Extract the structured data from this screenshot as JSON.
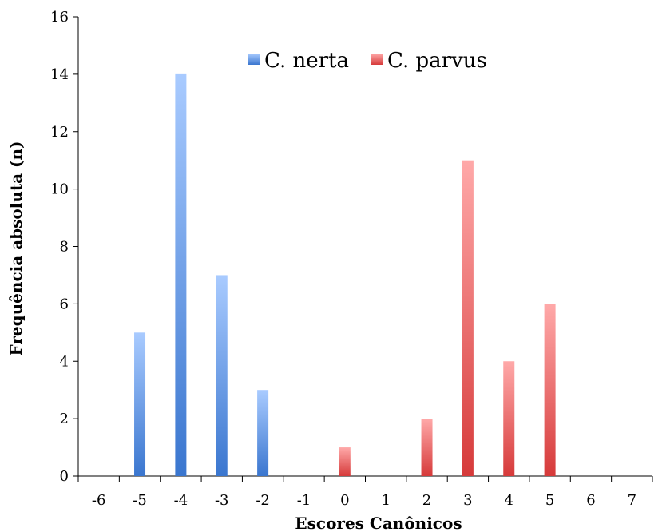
{
  "chart_data": {
    "type": "bar",
    "categories": [
      "-6",
      "-5",
      "-4",
      "-3",
      "-2",
      "-1",
      "0",
      "1",
      "2",
      "3",
      "4",
      "5",
      "6",
      "7"
    ],
    "series": [
      {
        "name": "C. nerta",
        "color": "#4a86d8",
        "values": [
          0,
          5,
          14,
          7,
          3,
          0,
          0,
          0,
          0,
          0,
          0,
          0,
          0,
          0
        ]
      },
      {
        "name": "C. parvus",
        "color": "#d94646",
        "values": [
          0,
          0,
          0,
          0,
          0,
          0,
          1,
          0,
          2,
          11,
          4,
          6,
          0,
          0
        ]
      }
    ],
    "xlabel": "Escores Canônicos",
    "ylabel": "Frequência absoluta (n)",
    "ylim": [
      0,
      16
    ],
    "yticks": [
      0,
      2,
      4,
      6,
      8,
      10,
      12,
      14,
      16
    ],
    "grid": false,
    "legend": "top-center"
  }
}
